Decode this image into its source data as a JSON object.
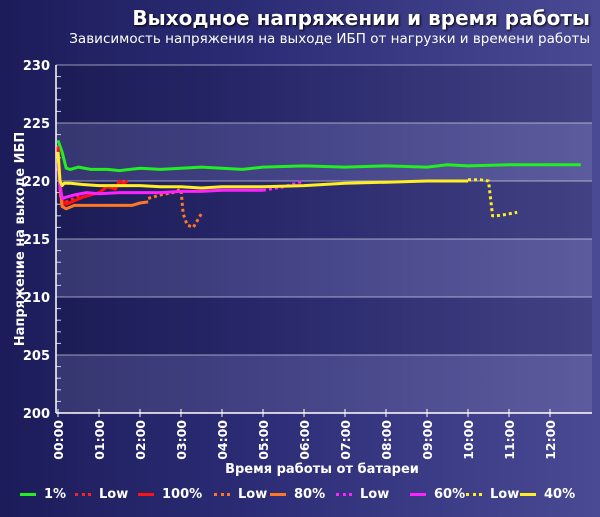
{
  "header": {
    "title": "Выходное напряжении и время работы",
    "subtitle": "Зависимость напряжения на выходе ИБП от нагрузки и времени работы"
  },
  "chart_data": {
    "type": "line",
    "title": "Выходное напряжении и время работы",
    "subtitle": "Зависимость напряжения на выходе ИБП от нагрузки и времени работы",
    "xlabel": "Время работы от батареи",
    "ylabel": "Напряжение на выходе ИБП",
    "xlim": [
      0,
      13
    ],
    "ylim": [
      200,
      230
    ],
    "x_ticks": [
      "00:00",
      "01:00",
      "02:00",
      "03:00",
      "04:00",
      "05:00",
      "06:00",
      "07:00",
      "08:00",
      "09:00",
      "10:00",
      "11:00",
      "12:00"
    ],
    "y_ticks": [
      200,
      205,
      210,
      215,
      220,
      225,
      230
    ],
    "grid": true,
    "legend_position": "bottom",
    "series": [
      {
        "name": "1%",
        "color": "#22ee22",
        "dashed": false,
        "x": [
          0,
          0.1,
          0.2,
          0.3,
          0.5,
          0.8,
          1.0,
          1.2,
          1.5,
          2.0,
          2.5,
          3.0,
          3.5,
          4.0,
          4.5,
          5.0,
          6.0,
          7.0,
          8.0,
          9.0,
          9.5,
          10.0,
          11.0,
          12.0,
          12.75
        ],
        "y": [
          223.5,
          222.5,
          221.1,
          221.0,
          221.2,
          221.0,
          221.0,
          221.0,
          220.9,
          221.1,
          221.0,
          221.1,
          221.2,
          221.1,
          221.0,
          221.2,
          221.3,
          221.2,
          221.3,
          221.2,
          221.4,
          221.3,
          221.4,
          221.4,
          221.4
        ]
      },
      {
        "name": "Low",
        "color": "#ff2222",
        "dashed": true,
        "x": [
          0,
          0.05,
          0.1,
          0.2,
          0.4,
          0.6
        ],
        "y": [
          223.0,
          219.0,
          217.8,
          218.2,
          218.5,
          218.8
        ]
      },
      {
        "name": "100%",
        "color": "#ff1111",
        "dashed": false,
        "x": [
          0,
          0.05,
          0.1,
          0.2,
          0.4,
          0.6,
          0.8,
          1.0,
          1.2,
          1.4,
          1.5,
          1.6,
          1.7
        ],
        "y": [
          222.8,
          220.0,
          218.3,
          218.0,
          218.3,
          218.6,
          218.8,
          219.0,
          219.5,
          219.3,
          220.0,
          219.8,
          220.0
        ]
      },
      {
        "name": "Low",
        "color": "#ff7722",
        "dashed": true,
        "x": [
          2.2,
          2.5,
          2.8,
          3.0,
          3.05,
          3.15,
          3.3,
          3.5
        ],
        "y": [
          218.5,
          218.8,
          219.0,
          219.3,
          217.2,
          216.2,
          216.0,
          217.2
        ]
      },
      {
        "name": "80%",
        "color": "#ff7722",
        "dashed": false,
        "x": [
          0,
          0.05,
          0.1,
          0.2,
          0.4,
          0.7,
          1.0,
          1.5,
          1.8,
          2.0,
          2.2
        ],
        "y": [
          222.0,
          219.5,
          217.8,
          217.6,
          217.9,
          217.9,
          217.9,
          217.9,
          217.9,
          218.1,
          218.2
        ]
      },
      {
        "name": "Low",
        "color": "#ff22ff",
        "dashed": true,
        "x": [
          5.0,
          5.5,
          6.0
        ],
        "y": [
          219.2,
          219.5,
          220.0
        ]
      },
      {
        "name": "60%",
        "color": "#ff22ff",
        "dashed": false,
        "x": [
          0,
          0.05,
          0.1,
          0.2,
          0.4,
          0.7,
          1.0,
          1.5,
          2.0,
          2.5,
          3.0,
          3.5,
          4.0,
          4.5,
          5.0
        ],
        "y": [
          221.5,
          219.5,
          218.5,
          218.6,
          218.8,
          219.0,
          218.9,
          219.0,
          219.0,
          219.0,
          219.1,
          219.1,
          219.2,
          219.2,
          219.2
        ]
      },
      {
        "name": "Low",
        "color": "#ffee22",
        "dashed": true,
        "x": [
          10.0,
          10.3,
          10.5,
          10.6,
          10.7,
          10.9,
          11.2
        ],
        "y": [
          220.1,
          220.1,
          220.0,
          217.0,
          217.0,
          217.1,
          217.3
        ]
      },
      {
        "name": "40%",
        "color": "#ffee22",
        "dashed": false,
        "x": [
          0,
          0.05,
          0.1,
          0.15,
          0.3,
          0.6,
          1.0,
          1.5,
          2.0,
          2.5,
          3.0,
          3.5,
          4.0,
          4.5,
          5.0,
          6.0,
          7.0,
          8.0,
          9.0,
          10.0
        ],
        "y": [
          222.5,
          220.0,
          219.6,
          219.8,
          219.8,
          219.7,
          219.6,
          219.6,
          219.6,
          219.5,
          219.5,
          219.4,
          219.5,
          219.5,
          219.5,
          219.6,
          219.8,
          219.9,
          220.0,
          220.0
        ]
      }
    ]
  },
  "legend": [
    {
      "label": "1%",
      "color": "#22ee22",
      "dashed": false
    },
    {
      "label": "Low",
      "color": "#ff2222",
      "dashed": true
    },
    {
      "label": "100%",
      "color": "#ff1111",
      "dashed": false
    },
    {
      "label": "Low",
      "color": "#ff7722",
      "dashed": true
    },
    {
      "label": "80%",
      "color": "#ff7722",
      "dashed": false
    },
    {
      "label": "Low",
      "color": "#ff22ff",
      "dashed": true
    },
    {
      "label": "60%",
      "color": "#ff22ff",
      "dashed": false
    },
    {
      "label": "Low",
      "color": "#ffee22",
      "dashed": true
    },
    {
      "label": "40%",
      "color": "#ffee22",
      "dashed": false
    }
  ]
}
